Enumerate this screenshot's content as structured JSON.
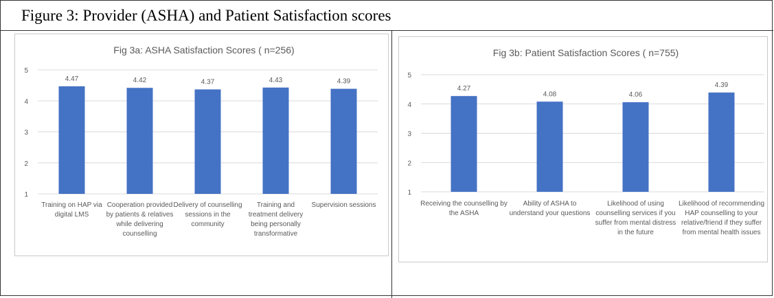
{
  "figure": {
    "title": "Figure 3: Provider (ASHA) and Patient Satisfaction scores"
  },
  "colors": {
    "bar": "#4472c4",
    "grid": "#d9d9d9",
    "text": "#595959"
  },
  "chart_data": [
    {
      "type": "bar",
      "title": "Fig 3a: ASHA Satisfaction Scores ( n=256)",
      "categories": [
        [
          "Training on HAP via",
          "digital LMS"
        ],
        [
          "Cooperation provided",
          "by patients & relatives",
          "while delivering",
          "counselling"
        ],
        [
          "Delivery of counselling",
          "sessions in the",
          "community"
        ],
        [
          "Training and",
          "treatment delivery",
          "being personally",
          "transformative"
        ],
        [
          "Supervision sessions"
        ]
      ],
      "values": [
        4.47,
        4.42,
        4.37,
        4.43,
        4.39
      ],
      "data_labels": [
        "4.47",
        "4.42",
        "4.37",
        "4.43",
        "4.39"
      ],
      "yticks": [
        "1",
        "2",
        "3",
        "4",
        "5"
      ],
      "ylim": [
        1,
        5
      ],
      "grid": true,
      "legend": "none"
    },
    {
      "type": "bar",
      "title": "Fig 3b: Patient Satisfaction Scores ( n=755)",
      "categories": [
        [
          "Receiving the counselling by",
          "the ASHA"
        ],
        [
          "Ability of ASHA to",
          "understand your questions"
        ],
        [
          "Likelihood of using",
          "counselling services if you",
          "suffer from mental distress",
          "in the future"
        ],
        [
          "Likelihood of recommending",
          "HAP counselling to your",
          "relative/friend if they suffer",
          "from mental health issues"
        ]
      ],
      "values": [
        4.27,
        4.08,
        4.06,
        4.39
      ],
      "data_labels": [
        "4.27",
        "4.08",
        "4.06",
        "4.39"
      ],
      "yticks": [
        "1",
        "2",
        "3",
        "4",
        "5"
      ],
      "ylim": [
        1,
        5
      ],
      "grid": true,
      "legend": "none"
    }
  ]
}
